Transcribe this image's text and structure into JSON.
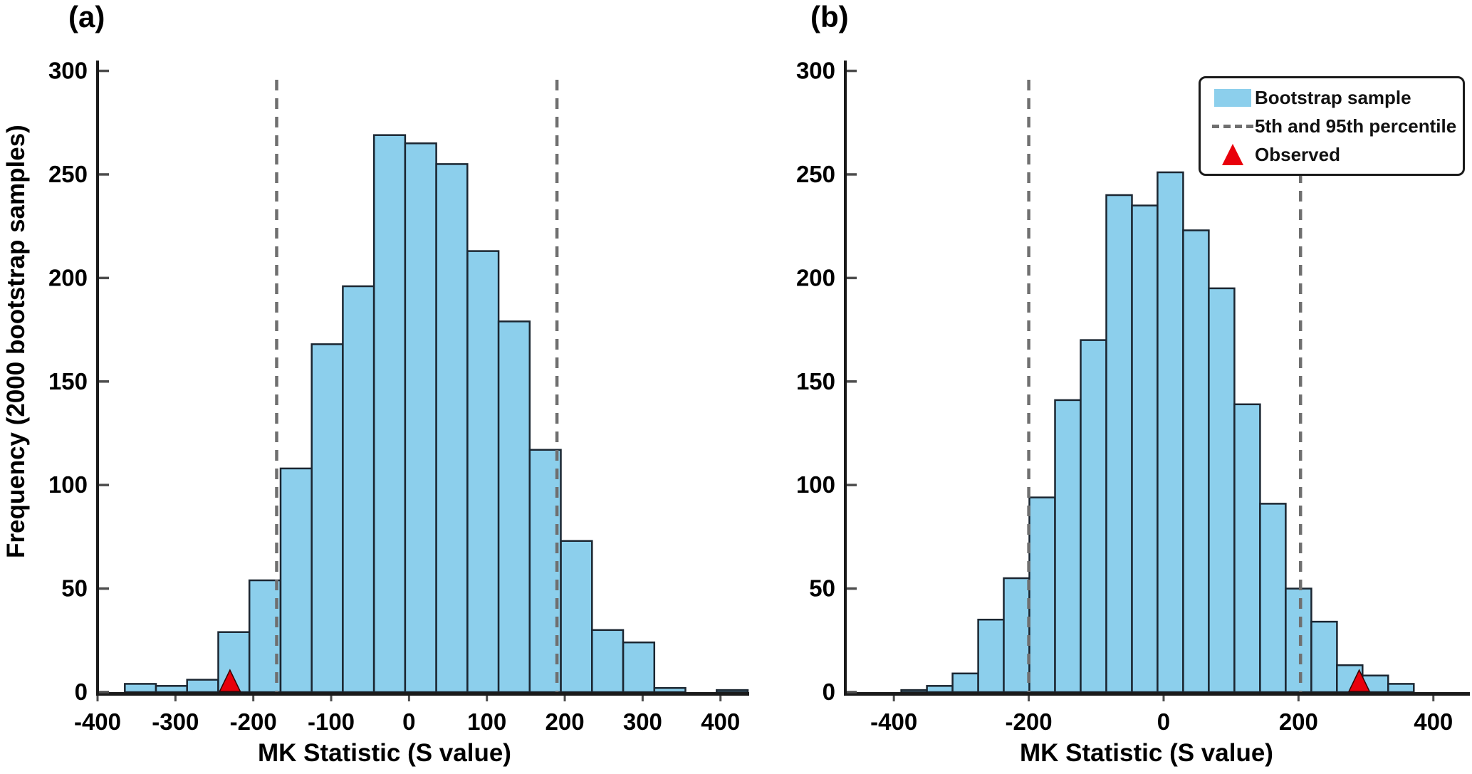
{
  "figure": {
    "background": "#ffffff",
    "ylabel": "Frequency (2000 bootstrap samples)"
  },
  "legend": {
    "position": "upper-right-of-panel-b",
    "items": [
      {
        "label": "Bootstrap sample",
        "marker": "bar-swatch",
        "color": "#8CCFEC"
      },
      {
        "label": "5th and 95th percentile",
        "marker": "dashed-line",
        "color": "#6f6f6f"
      },
      {
        "label": "Observed",
        "marker": "triangle",
        "color": "#E8000B"
      }
    ]
  },
  "style": {
    "bar_fill": "#8CCFEC",
    "bar_edge": "#1b2631",
    "dash_color": "#6f6f6f",
    "observed_fill": "#E8000B",
    "observed_edge": "#3a0000",
    "axis_color": "#1a1a1a",
    "tick_color": "#4d4d4d",
    "text_color": "#000000"
  },
  "chart_data": [
    {
      "type": "bar",
      "subtype": "histogram",
      "panel": "(a)",
      "title": "(a)",
      "xlabel": "MK Statistic (S value)",
      "ylabel": "Frequency (2000 bootstrap samples)",
      "n_bootstrap": 2000,
      "bin_width": 40,
      "bin_centers": [
        -345,
        -305,
        -265,
        -225,
        -185,
        -145,
        -105,
        -65,
        -25,
        15,
        55,
        95,
        135,
        175,
        215,
        255,
        295,
        335,
        375,
        415
      ],
      "frequencies": [
        4,
        3,
        6,
        29,
        54,
        108,
        168,
        196,
        269,
        265,
        255,
        213,
        179,
        117,
        73,
        30,
        24,
        2,
        0,
        1
      ],
      "percentile_lines": {
        "p5": -170,
        "p95": 190
      },
      "observed_S": -230,
      "xticks": [
        -400,
        -300,
        -200,
        -100,
        0,
        100,
        200,
        300,
        400
      ],
      "yticks": [
        0,
        50,
        100,
        150,
        200,
        250,
        300
      ],
      "xlim": [
        -400,
        435
      ],
      "ylim": [
        0,
        305
      ],
      "grid": false,
      "has_legend": false
    },
    {
      "type": "bar",
      "subtype": "histogram",
      "panel": "(b)",
      "title": "(b)",
      "xlabel": "MK Statistic (S value)",
      "ylabel": "Frequency (2000 bootstrap samples)",
      "n_bootstrap": 2000,
      "bin_width": 38,
      "bin_centers": [
        -370,
        -332,
        -294,
        -256,
        -218,
        -180,
        -142,
        -104,
        -66,
        -28,
        10,
        48,
        86,
        124,
        162,
        200,
        238,
        276,
        314,
        352
      ],
      "frequencies": [
        1,
        3,
        9,
        35,
        55,
        94,
        141,
        170,
        240,
        235,
        251,
        223,
        195,
        139,
        91,
        50,
        34,
        13,
        8,
        4
      ],
      "percentile_lines": {
        "p5": -200,
        "p95": 203
      },
      "observed_S": 290,
      "xticks": [
        -400,
        -200,
        0,
        200,
        400
      ],
      "yticks": [
        0,
        50,
        100,
        150,
        200,
        250,
        300
      ],
      "xlim": [
        -472,
        452
      ],
      "ylim": [
        0,
        305
      ],
      "grid": false,
      "has_legend": true
    }
  ]
}
